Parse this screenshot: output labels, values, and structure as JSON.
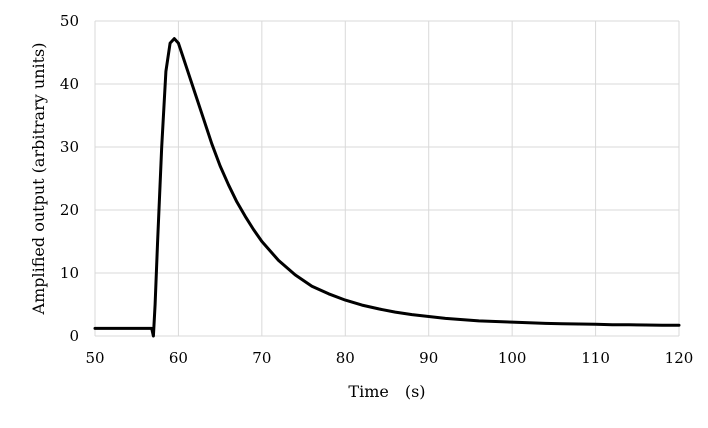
{
  "chart_data": {
    "type": "line",
    "title": "",
    "xlabel": "Time　(s)",
    "ylabel": "Amplified output (arbitrary units)",
    "xlim": [
      50,
      120
    ],
    "ylim": [
      0,
      50
    ],
    "x_ticks": [
      50,
      60,
      70,
      80,
      90,
      100,
      110,
      120
    ],
    "y_ticks": [
      0,
      10,
      20,
      30,
      40,
      50
    ],
    "grid": true,
    "legend": "none",
    "line_color": "#000000",
    "grid_color": "#d9d9d9",
    "series": [
      {
        "x": [
          50,
          52,
          54,
          56,
          56.8,
          57.0,
          57.2,
          57.5,
          58.0,
          58.5,
          59.0,
          59.5,
          60.0,
          60.5,
          61,
          62,
          63,
          64,
          65,
          66,
          67,
          68,
          69,
          70,
          72,
          74,
          76,
          78,
          80,
          82,
          84,
          86,
          88,
          90,
          92,
          94,
          96,
          98,
          100,
          102,
          104,
          106,
          108,
          110,
          112,
          114,
          116,
          118,
          120
        ],
        "y": [
          1.2,
          1.2,
          1.2,
          1.2,
          1.2,
          0.0,
          5,
          15,
          30,
          42,
          46.5,
          47.2,
          46.5,
          44.5,
          42.5,
          38.5,
          34.5,
          30.5,
          27,
          24,
          21.3,
          19,
          16.9,
          15,
          12,
          9.7,
          7.9,
          6.7,
          5.7,
          4.9,
          4.3,
          3.8,
          3.4,
          3.1,
          2.8,
          2.6,
          2.4,
          2.3,
          2.2,
          2.1,
          2.0,
          1.95,
          1.9,
          1.85,
          1.8,
          1.78,
          1.75,
          1.72,
          1.7
        ]
      }
    ]
  }
}
